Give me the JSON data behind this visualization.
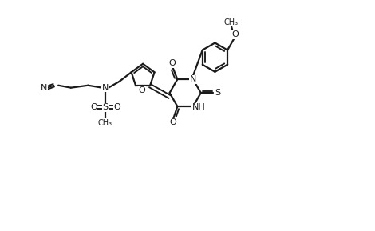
{
  "bg_color": "#ffffff",
  "line_color": "#1a1a1a",
  "line_width": 1.6,
  "figsize": [
    4.7,
    2.89
  ],
  "dpi": 100,
  "xlim": [
    0,
    47
  ],
  "ylim": [
    0,
    28.9
  ]
}
